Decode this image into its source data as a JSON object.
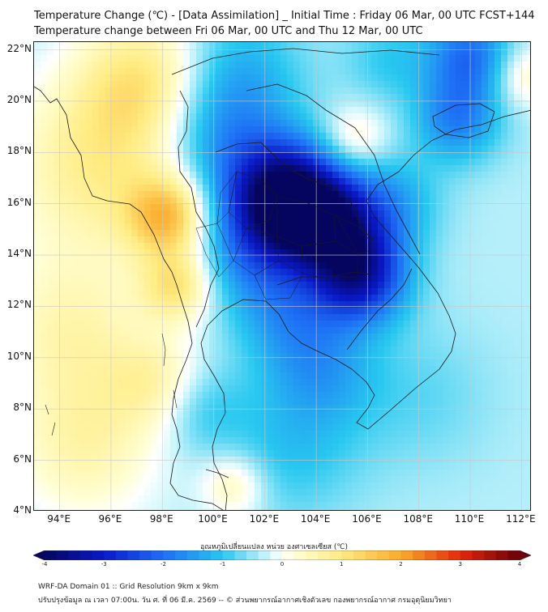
{
  "title_line1": "Temperature Change (℃) - [Data Assimilation] _ Initial Time : Friday 06 Mar, 00 UTC FCST+144",
  "title_line2": "Temperature change between Fri 06 Mar, 00 UTC and Thu 12 Mar, 00 UTC",
  "map": {
    "lat_labels": [
      "22°N",
      "20°N",
      "18°N",
      "16°N",
      "14°N",
      "12°N",
      "10°N",
      "8°N",
      "6°N",
      "4°N"
    ],
    "lon_labels": [
      "94°E",
      "96°E",
      "98°E",
      "100°E",
      "102°E",
      "104°E",
      "106°E",
      "108°E",
      "110°E",
      "112°E"
    ],
    "lat_range": [
      4,
      22.3
    ],
    "lon_range": [
      93,
      112.4
    ],
    "field_blobs": [
      {
        "lon": 95.5,
        "lat": 17.5,
        "value": 1.2,
        "spread": 2.4
      },
      {
        "lon": 97.3,
        "lat": 20.8,
        "value": 1.3,
        "spread": 1.8
      },
      {
        "lon": 98.2,
        "lat": 15.5,
        "value": 1.9,
        "spread": 1.1
      },
      {
        "lon": 98.6,
        "lat": 12.8,
        "value": 1.4,
        "spread": 1.0
      },
      {
        "lon": 94.5,
        "lat": 11.0,
        "value": 0.9,
        "spread": 2.2
      },
      {
        "lon": 97.8,
        "lat": 9.0,
        "value": 0.8,
        "spread": 1.3
      },
      {
        "lon": 95.0,
        "lat": 6.5,
        "value": 0.9,
        "spread": 2.0
      },
      {
        "lon": 100.8,
        "lat": 5.0,
        "value": 0.9,
        "spread": 0.9
      },
      {
        "lon": 105.5,
        "lat": 18.5,
        "value": 0.8,
        "spread": 0.9
      },
      {
        "lon": 112.0,
        "lat": 21.0,
        "value": 0.8,
        "spread": 0.9
      },
      {
        "lon": 102.7,
        "lat": 16.3,
        "value": -3.5,
        "spread": 1.5
      },
      {
        "lon": 104.5,
        "lat": 15.3,
        "value": -2.6,
        "spread": 1.4
      },
      {
        "lon": 105.7,
        "lat": 13.2,
        "value": -2.7,
        "spread": 1.3
      },
      {
        "lon": 101.5,
        "lat": 14.0,
        "value": -1.2,
        "spread": 1.6
      },
      {
        "lon": 100.2,
        "lat": 18.5,
        "value": -1.0,
        "spread": 1.7
      },
      {
        "lon": 103.0,
        "lat": 11.5,
        "value": -0.9,
        "spread": 1.5
      },
      {
        "lon": 104.3,
        "lat": 9.5,
        "value": -0.8,
        "spread": 1.5
      },
      {
        "lon": 101.0,
        "lat": 21.0,
        "value": -0.9,
        "spread": 1.8
      },
      {
        "lon": 109.5,
        "lat": 19.3,
        "value": -1.4,
        "spread": 1.2
      },
      {
        "lon": 110.0,
        "lat": 21.8,
        "value": -1.6,
        "spread": 1.2
      },
      {
        "lon": 106.8,
        "lat": 21.6,
        "value": -0.6,
        "spread": 1.2
      },
      {
        "lon": 107.0,
        "lat": 16.0,
        "value": -0.9,
        "spread": 1.3
      },
      {
        "lon": 103.0,
        "lat": 6.5,
        "value": -0.7,
        "spread": 2.0
      },
      {
        "lon": 108.0,
        "lat": 8.5,
        "value": -0.4,
        "spread": 2.0
      },
      {
        "lon": 99.5,
        "lat": 8.0,
        "value": -0.6,
        "spread": 1.2
      }
    ]
  },
  "colorbar": {
    "caption": "อุณหภูมิเปลี่ยนแปลง หน่วย องศาเซลเซียส (℃)",
    "ticks": [
      "-4",
      "-3",
      "-2",
      "-1",
      "0",
      "1",
      "2",
      "3",
      "4"
    ],
    "min": -4,
    "max": 4,
    "step": 0.2
  },
  "footer_line1": "WRF-DA Domain 01 :: Grid Resolution 9km x 9km",
  "footer_line2": "ปรับปรุงข้อมูล ณ เวลา 07:00น. วัน ศ. ที่ 06 มี.ค. 2569 -- © ส่วนพยากรณ์อากาศเชิงตัวเลข กองพยากรณ์อากาศ กรมอุตุนิยมวิทยา"
}
